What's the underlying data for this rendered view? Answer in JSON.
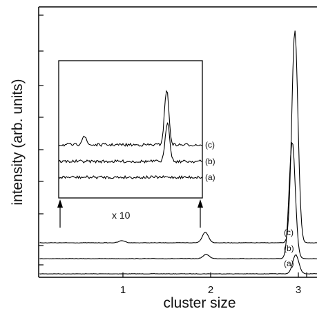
{
  "chart_data": {
    "type": "line",
    "xlabel": "cluster size",
    "ylabel": "intensity (arb. units)",
    "xlim": [
      0.0,
      3.65
    ],
    "x_ticks": [
      "1",
      "2",
      "3"
    ],
    "y_ticks": "unlabeled",
    "grid": false,
    "series": [
      {
        "name": "(a)",
        "peaks": [
          {
            "x": 2.97,
            "height": 0.09
          }
        ]
      },
      {
        "name": "(b)",
        "peaks": [
          {
            "x": 1.95,
            "height": 0.02
          },
          {
            "x": 2.93,
            "height": 0.55
          }
        ]
      },
      {
        "name": "(c)",
        "peaks": [
          {
            "x": 0.99,
            "height": 0.01
          },
          {
            "x": 1.94,
            "height": 0.05
          },
          {
            "x": 2.96,
            "height": 1.0
          }
        ]
      }
    ],
    "inset": {
      "magnification_label": "x 10",
      "series": [
        {
          "name": "(c)",
          "peaks": [
            {
              "x": 0.99,
              "height": 0.08
            },
            {
              "x": 1.94,
              "height": 0.5
            }
          ]
        },
        {
          "name": "(b)",
          "peaks": [
            {
              "x": 1.95,
              "height": 0.36
            }
          ]
        },
        {
          "name": "(a)",
          "peaks": []
        }
      ]
    }
  }
}
